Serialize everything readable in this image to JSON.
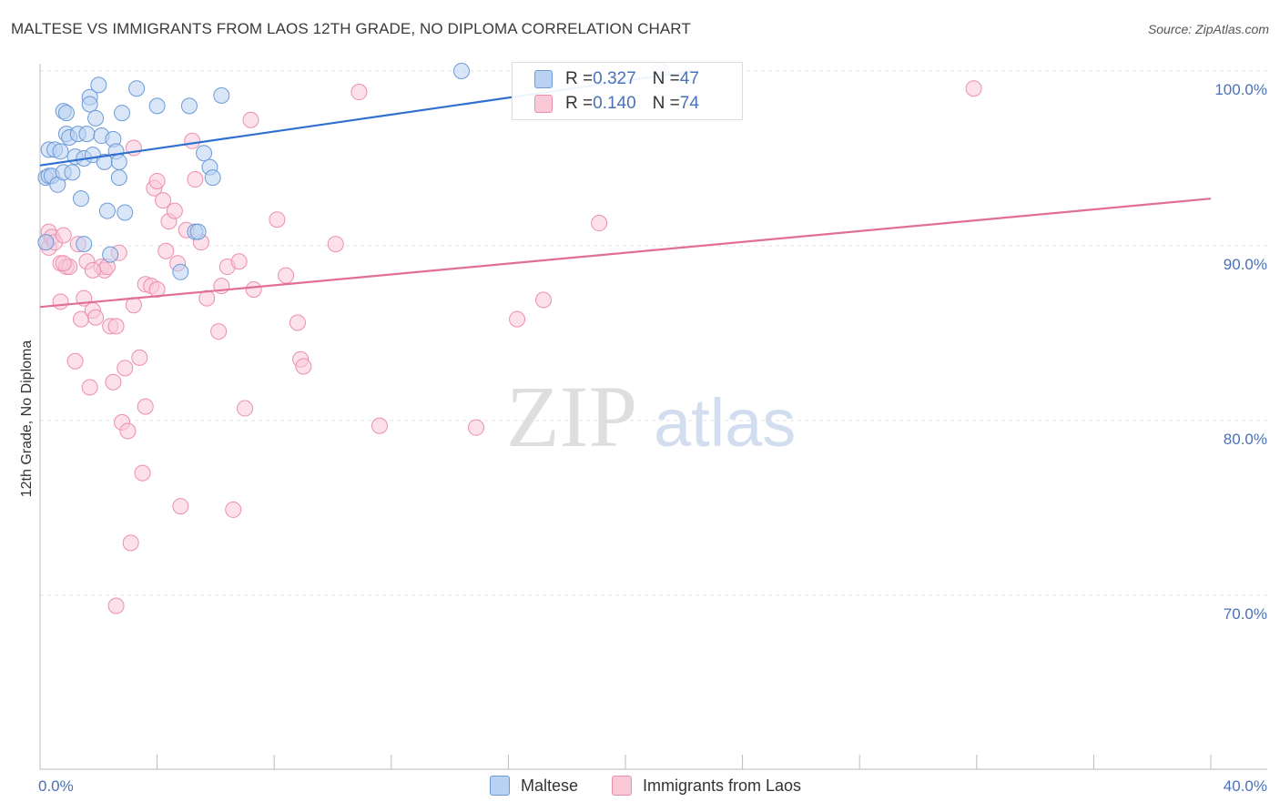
{
  "title": "MALTESE VS IMMIGRANTS FROM LAOS 12TH GRADE, NO DIPLOMA CORRELATION CHART",
  "source": "Source: ZipAtlas.com",
  "watermark": {
    "zip": "ZIP",
    "atlas": "atlas"
  },
  "colors": {
    "maltese_fill": "#b9d1f3",
    "maltese_stroke": "#6d9ad6",
    "maltese_line": "#2f6fd0",
    "laos_fill": "#f9c9d8",
    "laos_stroke": "#eb8fae",
    "laos_line": "#e06e97",
    "tick_text": "#4a72b8",
    "grid": "#e2e2e2"
  },
  "legend": {
    "rows": [
      {
        "r_label": "R = ",
        "r_value": "0.327",
        "n_label": "N = ",
        "n_value": "47"
      },
      {
        "r_label": "R = ",
        "r_value": "0.140",
        "n_label": "N = ",
        "n_value": "74"
      }
    ]
  },
  "bottom_legend": [
    "Maltese",
    "Immigrants from Laos"
  ],
  "chart_data": {
    "type": "scatter",
    "title": "MALTESE VS IMMIGRANTS FROM LAOS 12TH GRADE, NO DIPLOMA CORRELATION CHART",
    "xlabel": "",
    "ylabel": "12th Grade, No Diploma",
    "xlim": [
      0,
      40
    ],
    "ylim": [
      61,
      101
    ],
    "x_tick_labels": [
      "0.0%",
      "40.0%"
    ],
    "y_ticks": [
      70,
      80,
      90,
      100
    ],
    "y_tick_labels": [
      "70.0%",
      "80.0%",
      "90.0%",
      "100.0%"
    ],
    "grid": "horizontal dashed",
    "legend_position": "top-center",
    "series": [
      {
        "name": "Maltese",
        "R": 0.327,
        "N": 47,
        "trend": {
          "x": [
            0,
            22.3
          ],
          "y": [
            94.6,
            100.0
          ]
        },
        "points": [
          [
            0.2,
            93.9
          ],
          [
            0.3,
            95.5
          ],
          [
            0.3,
            94.0
          ],
          [
            0.4,
            94.0
          ],
          [
            0.5,
            95.5
          ],
          [
            0.6,
            93.5
          ],
          [
            0.7,
            95.4
          ],
          [
            0.8,
            94.2
          ],
          [
            0.8,
            97.7
          ],
          [
            0.9,
            97.6
          ],
          [
            0.9,
            96.4
          ],
          [
            1.0,
            96.2
          ],
          [
            1.1,
            94.2
          ],
          [
            1.2,
            95.1
          ],
          [
            1.3,
            96.4
          ],
          [
            1.4,
            92.7
          ],
          [
            1.5,
            95.0
          ],
          [
            1.5,
            90.1
          ],
          [
            1.6,
            96.4
          ],
          [
            1.7,
            98.5
          ],
          [
            1.7,
            98.1
          ],
          [
            1.8,
            95.2
          ],
          [
            1.9,
            97.3
          ],
          [
            2.0,
            99.2
          ],
          [
            2.1,
            96.3
          ],
          [
            2.2,
            94.8
          ],
          [
            2.3,
            92.0
          ],
          [
            2.4,
            89.5
          ],
          [
            2.5,
            96.1
          ],
          [
            2.6,
            95.4
          ],
          [
            2.7,
            94.8
          ],
          [
            2.7,
            93.9
          ],
          [
            2.8,
            97.6
          ],
          [
            2.9,
            91.9
          ],
          [
            3.3,
            99.0
          ],
          [
            4.0,
            98.0
          ],
          [
            4.8,
            88.5
          ],
          [
            5.1,
            98.0
          ],
          [
            5.3,
            90.8
          ],
          [
            5.4,
            90.8
          ],
          [
            5.6,
            95.3
          ],
          [
            5.8,
            94.5
          ],
          [
            5.9,
            93.9
          ],
          [
            6.2,
            98.6
          ],
          [
            14.4,
            100.0
          ],
          [
            21.2,
            100.0
          ],
          [
            0.2,
            90.2
          ]
        ]
      },
      {
        "name": "Immigrants from Laos",
        "R": 0.14,
        "N": 74,
        "trend": {
          "x": [
            0,
            40
          ],
          "y": [
            86.5,
            92.7
          ]
        },
        "points": [
          [
            0.2,
            90.2
          ],
          [
            0.3,
            90.8
          ],
          [
            0.3,
            89.9
          ],
          [
            0.4,
            90.5
          ],
          [
            0.5,
            90.2
          ],
          [
            0.7,
            86.8
          ],
          [
            0.7,
            89.0
          ],
          [
            0.8,
            90.6
          ],
          [
            0.9,
            88.8
          ],
          [
            1.0,
            88.8
          ],
          [
            1.2,
            83.4
          ],
          [
            1.3,
            90.1
          ],
          [
            1.4,
            85.8
          ],
          [
            1.5,
            87.0
          ],
          [
            1.6,
            89.1
          ],
          [
            1.7,
            81.9
          ],
          [
            1.8,
            86.3
          ],
          [
            1.9,
            85.9
          ],
          [
            2.1,
            88.8
          ],
          [
            2.2,
            88.6
          ],
          [
            2.3,
            88.8
          ],
          [
            2.4,
            85.4
          ],
          [
            2.5,
            82.2
          ],
          [
            2.6,
            85.4
          ],
          [
            2.7,
            89.6
          ],
          [
            2.8,
            79.9
          ],
          [
            2.9,
            83.0
          ],
          [
            3.0,
            79.4
          ],
          [
            3.1,
            73.0
          ],
          [
            3.2,
            95.6
          ],
          [
            3.2,
            86.6
          ],
          [
            3.4,
            83.6
          ],
          [
            3.5,
            77.0
          ],
          [
            3.6,
            87.8
          ],
          [
            3.6,
            80.8
          ],
          [
            3.8,
            87.7
          ],
          [
            3.9,
            93.3
          ],
          [
            4.0,
            93.7
          ],
          [
            4.0,
            87.5
          ],
          [
            4.2,
            92.6
          ],
          [
            4.3,
            89.7
          ],
          [
            4.4,
            91.4
          ],
          [
            4.6,
            92.0
          ],
          [
            4.8,
            75.1
          ],
          [
            5.0,
            90.9
          ],
          [
            5.2,
            96.0
          ],
          [
            5.3,
            93.8
          ],
          [
            5.5,
            90.2
          ],
          [
            5.7,
            87.0
          ],
          [
            6.1,
            85.1
          ],
          [
            6.2,
            87.7
          ],
          [
            6.4,
            88.8
          ],
          [
            6.6,
            74.9
          ],
          [
            6.8,
            89.1
          ],
          [
            7.0,
            80.7
          ],
          [
            7.2,
            97.2
          ],
          [
            7.3,
            87.5
          ],
          [
            8.1,
            91.5
          ],
          [
            8.4,
            88.3
          ],
          [
            8.8,
            85.6
          ],
          [
            8.9,
            83.5
          ],
          [
            9.0,
            83.1
          ],
          [
            10.1,
            90.1
          ],
          [
            10.9,
            98.8
          ],
          [
            11.6,
            79.7
          ],
          [
            14.9,
            79.6
          ],
          [
            16.3,
            85.8
          ],
          [
            17.2,
            86.9
          ],
          [
            19.1,
            91.3
          ],
          [
            31.9,
            99.0
          ],
          [
            2.6,
            69.4
          ],
          [
            0.8,
            89.0
          ],
          [
            1.8,
            88.6
          ],
          [
            4.7,
            89.0
          ]
        ]
      }
    ]
  }
}
